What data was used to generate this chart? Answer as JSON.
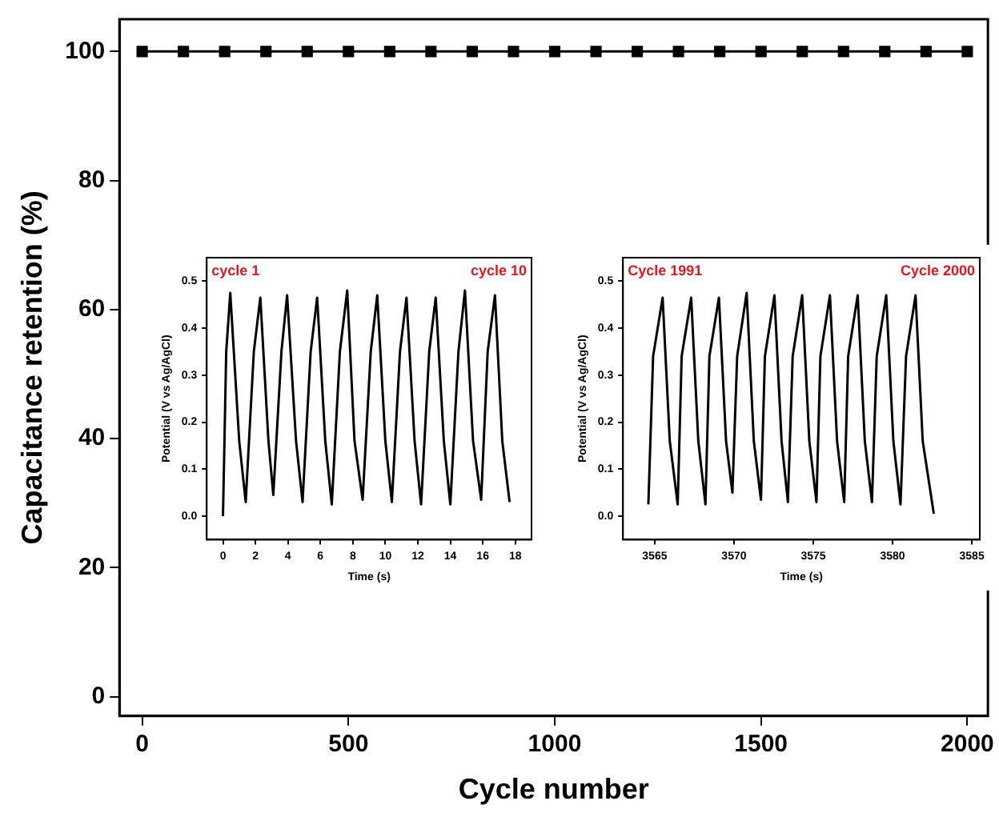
{
  "chart_data": [
    {
      "type": "line",
      "xlabel": "Cycle number",
      "ylabel": "Capacitance retention (%)",
      "marker": "square",
      "grid": false,
      "legend": false,
      "xlim": [
        -55,
        2050
      ],
      "ylim": [
        -3,
        105
      ],
      "xticks": [
        0,
        500,
        1000,
        1500,
        2000
      ],
      "yticks": [
        0,
        20,
        40,
        60,
        80,
        100
      ],
      "series": [
        {
          "color": "#000000",
          "x": [
            0,
            100,
            200,
            300,
            400,
            500,
            600,
            700,
            800,
            900,
            1000,
            1100,
            1200,
            1300,
            1400,
            1500,
            1600,
            1700,
            1800,
            1900,
            2000
          ],
          "values": [
            100,
            100,
            100,
            100,
            100,
            100,
            100,
            100,
            100,
            100,
            100,
            100,
            100,
            100,
            100,
            100,
            100,
            100,
            100,
            100,
            100
          ]
        }
      ]
    },
    {
      "type": "line",
      "xlabel": "Time (s)",
      "ylabel": "Potential (V vs Ag/AgCl)",
      "marker": "none",
      "grid": false,
      "legend": false,
      "xlim": [
        -1,
        19
      ],
      "ylim": [
        -0.05,
        0.55
      ],
      "xticks": [
        0,
        2,
        4,
        6,
        8,
        10,
        12,
        14,
        16,
        18
      ],
      "yticks": [
        {
          "value": 0,
          "label": "0.0"
        },
        0.1,
        0.2,
        0.3,
        0.4,
        0.5
      ],
      "annotations": [
        "cycle 1",
        "cycle 10"
      ],
      "series": [
        {
          "color": "#000000",
          "x": [
            0,
            0.2,
            0.45,
            1.0,
            1.4,
            1.9,
            2.3,
            2.8,
            3.1,
            3.6,
            3.95,
            4.5,
            4.9,
            5.4,
            5.8,
            6.3,
            6.7,
            7.2,
            7.65,
            8.1,
            8.6,
            9.1,
            9.5,
            10.0,
            10.4,
            10.9,
            11.3,
            11.8,
            12.2,
            12.7,
            13.1,
            13.6,
            14.0,
            14.5,
            14.9,
            15.4,
            15.9,
            16.3,
            16.75,
            17.2,
            17.65
          ],
          "values": [
            0,
            0.35,
            0.475,
            0.16,
            0.03,
            0.35,
            0.465,
            0.16,
            0.045,
            0.35,
            0.47,
            0.16,
            0.03,
            0.35,
            0.465,
            0.16,
            0.025,
            0.35,
            0.48,
            0.16,
            0.035,
            0.35,
            0.47,
            0.16,
            0.03,
            0.35,
            0.465,
            0.16,
            0.025,
            0.35,
            0.465,
            0.16,
            0.025,
            0.35,
            0.48,
            0.16,
            0.035,
            0.35,
            0.47,
            0.16,
            0.03
          ]
        }
      ]
    },
    {
      "type": "line",
      "xlabel": "Time (s)",
      "ylabel": "Potential (V vs Ag/AgCl)",
      "marker": "none",
      "grid": false,
      "legend": false,
      "xlim": [
        3563,
        3585.5
      ],
      "ylim": [
        -0.05,
        0.55
      ],
      "xticks": [
        3565,
        3570,
        3575,
        3580,
        3585
      ],
      "yticks": [
        {
          "value": 0,
          "label": "0.0"
        },
        0.1,
        0.2,
        0.3,
        0.4,
        0.5
      ],
      "annotations": [
        "Cycle 1991",
        "Cycle 2000"
      ],
      "series": [
        {
          "color": "#000000",
          "x": [
            3564.6,
            3564.9,
            3565.5,
            3565.95,
            3566.45,
            3566.7,
            3567.3,
            3567.75,
            3568.2,
            3568.45,
            3569.05,
            3569.5,
            3569.9,
            3570.2,
            3570.8,
            3571.25,
            3571.7,
            3571.95,
            3572.55,
            3573.0,
            3573.4,
            3573.7,
            3574.3,
            3574.75,
            3575.2,
            3575.45,
            3576.05,
            3576.5,
            3576.95,
            3577.2,
            3577.8,
            3578.25,
            3578.7,
            3579.0,
            3579.6,
            3580.05,
            3580.5,
            3580.85,
            3581.45,
            3581.9,
            3582.6
          ],
          "values": [
            0.025,
            0.34,
            0.465,
            0.16,
            0.025,
            0.34,
            0.465,
            0.16,
            0.025,
            0.34,
            0.465,
            0.16,
            0.05,
            0.34,
            0.475,
            0.16,
            0.035,
            0.34,
            0.47,
            0.16,
            0.03,
            0.34,
            0.47,
            0.16,
            0.03,
            0.34,
            0.47,
            0.16,
            0.03,
            0.34,
            0.47,
            0.16,
            0.03,
            0.34,
            0.47,
            0.16,
            0.025,
            0.34,
            0.47,
            0.16,
            0.005
          ]
        }
      ]
    }
  ]
}
